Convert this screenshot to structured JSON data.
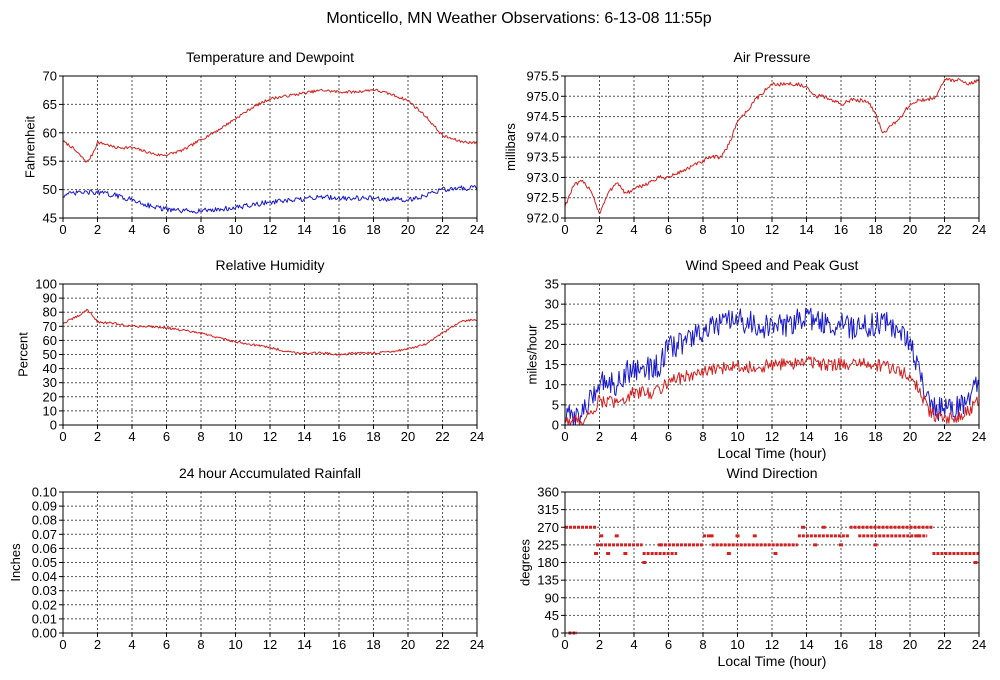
{
  "page": {
    "title": "Monticello, MN Weather Observations: 6-13-08 11:55p"
  },
  "colors": {
    "series_red": "#d42020",
    "series_blue": "#1a1acc",
    "grid": "#555555",
    "axis": "#000000",
    "background": "#ffffff"
  },
  "chart_data": [
    {
      "id": "temperature",
      "type": "line",
      "title": "Temperature and Dewpoint",
      "xlabel": "",
      "ylabel": "Fahrenheit",
      "xlim": [
        0,
        24
      ],
      "ylim": [
        45,
        70
      ],
      "xticks": [
        0,
        2,
        4,
        6,
        8,
        10,
        12,
        14,
        16,
        18,
        20,
        22,
        24
      ],
      "yticks": [
        45,
        50,
        55,
        60,
        65,
        70
      ],
      "ytick_labels": [
        "45",
        "50",
        "55",
        "60",
        "65",
        "70"
      ],
      "grid": true,
      "series": [
        {
          "color": "#d42020",
          "noise": 0.25,
          "x": [
            0,
            0.5,
            1.0,
            1.4,
            1.7,
            2.0,
            2.5,
            3.0,
            4.0,
            5.0,
            5.5,
            6.0,
            7.0,
            8.0,
            9.0,
            10.0,
            11.0,
            12.0,
            13.0,
            14.0,
            15.0,
            16.0,
            17.0,
            18.0,
            19.0,
            20.0,
            21.0,
            22.0,
            23.0,
            24.0
          ],
          "y": [
            58.5,
            57.5,
            56.0,
            54.8,
            56.2,
            58.3,
            58.0,
            57.4,
            57.4,
            56.5,
            56.1,
            56.1,
            57.0,
            58.8,
            60.5,
            62.5,
            64.5,
            66.0,
            66.5,
            67.0,
            67.5,
            67.2,
            67.2,
            67.6,
            66.8,
            65.7,
            63.0,
            59.5,
            58.5,
            58.2
          ]
        },
        {
          "color": "#1a1acc",
          "noise": 0.45,
          "x": [
            0,
            1.0,
            2.0,
            3.0,
            4.0,
            5.0,
            6.0,
            7.0,
            8.0,
            9.0,
            10.0,
            11.0,
            12.0,
            13.0,
            14.0,
            15.0,
            16.0,
            17.0,
            18.0,
            19.0,
            20.0,
            21.0,
            22.0,
            23.0,
            24.0
          ],
          "y": [
            49.0,
            49.5,
            49.5,
            49.0,
            48.2,
            47.2,
            46.5,
            46.2,
            46.3,
            46.5,
            46.8,
            47.3,
            47.8,
            48.0,
            48.3,
            48.8,
            48.5,
            48.5,
            48.5,
            48.3,
            48.2,
            49.0,
            50.0,
            50.2,
            50.3
          ]
        }
      ]
    },
    {
      "id": "pressure",
      "type": "line",
      "title": "Air Pressure",
      "xlabel": "",
      "ylabel": "millibars",
      "xlim": [
        0,
        24
      ],
      "ylim": [
        972.0,
        975.5
      ],
      "xticks": [
        0,
        2,
        4,
        6,
        8,
        10,
        12,
        14,
        16,
        18,
        20,
        22,
        24
      ],
      "yticks": [
        972.0,
        972.5,
        973.0,
        973.5,
        974.0,
        974.5,
        975.0,
        975.5
      ],
      "ytick_labels": [
        "972.0",
        "972.5",
        "973.0",
        "973.5",
        "974.0",
        "974.5",
        "975.0",
        "975.5"
      ],
      "grid": true,
      "series": [
        {
          "color": "#d42020",
          "noise": 0.05,
          "x": [
            0,
            0.5,
            1.0,
            1.5,
            2.0,
            2.5,
            3.0,
            3.5,
            4.0,
            4.5,
            5.0,
            5.5,
            6.0,
            6.5,
            7.0,
            7.5,
            8.0,
            8.5,
            9.0,
            9.5,
            10.0,
            10.5,
            11.0,
            11.5,
            12.0,
            12.5,
            13.0,
            13.5,
            14.0,
            14.5,
            15.0,
            15.5,
            16.0,
            16.5,
            17.0,
            17.5,
            18.0,
            18.3,
            18.5,
            19.0,
            19.5,
            20.0,
            20.5,
            21.0,
            21.5,
            22.0,
            22.5,
            23.0,
            23.5,
            24.0
          ],
          "y": [
            972.3,
            972.8,
            972.9,
            972.7,
            972.1,
            972.6,
            972.9,
            972.6,
            972.7,
            972.8,
            972.9,
            973.0,
            973.0,
            973.1,
            973.2,
            973.3,
            973.4,
            973.5,
            973.5,
            973.8,
            974.4,
            974.6,
            974.9,
            975.1,
            975.3,
            975.3,
            975.3,
            975.3,
            975.2,
            975.0,
            975.0,
            974.9,
            974.8,
            974.9,
            974.9,
            974.9,
            974.6,
            974.2,
            974.1,
            974.3,
            974.5,
            974.8,
            974.9,
            974.9,
            975.0,
            975.4,
            975.4,
            975.4,
            975.3,
            975.4
          ]
        }
      ]
    },
    {
      "id": "humidity",
      "type": "line",
      "title": "Relative Humidity",
      "xlabel": "",
      "ylabel": "Percent",
      "xlim": [
        0,
        24
      ],
      "ylim": [
        0,
        100
      ],
      "xticks": [
        0,
        2,
        4,
        6,
        8,
        10,
        12,
        14,
        16,
        18,
        20,
        22,
        24
      ],
      "yticks": [
        0,
        10,
        20,
        30,
        40,
        50,
        60,
        70,
        80,
        90,
        100
      ],
      "ytick_labels": [
        "0",
        "10",
        "20",
        "30",
        "40",
        "50",
        "60",
        "70",
        "80",
        "90",
        "100"
      ],
      "grid": true,
      "series": [
        {
          "color": "#d42020",
          "noise": 0.8,
          "x": [
            0,
            0.5,
            1.0,
            1.4,
            1.7,
            2.0,
            3.0,
            4.0,
            5.0,
            6.0,
            7.0,
            8.0,
            9.0,
            10.0,
            11.0,
            12.0,
            13.0,
            14.0,
            15.0,
            16.0,
            17.0,
            18.0,
            19.0,
            20.0,
            21.0,
            22.0,
            23.0,
            24.0
          ],
          "y": [
            72,
            75,
            78,
            82,
            78,
            73,
            72,
            70,
            70,
            69,
            67,
            65,
            62,
            59,
            57,
            55,
            52,
            51,
            51,
            50,
            51,
            51,
            52,
            54,
            57,
            65,
            73,
            75
          ]
        }
      ]
    },
    {
      "id": "wind-speed",
      "type": "line",
      "title": "Wind Speed and Peak Gust",
      "xlabel": "Local Time (hour)",
      "ylabel": "miles/hour",
      "xlim": [
        0,
        24
      ],
      "ylim": [
        0,
        35
      ],
      "xticks": [
        0,
        2,
        4,
        6,
        8,
        10,
        12,
        14,
        16,
        18,
        20,
        22,
        24
      ],
      "yticks": [
        0,
        5,
        10,
        15,
        20,
        25,
        30,
        35
      ],
      "ytick_labels": [
        "0",
        "5",
        "10",
        "15",
        "20",
        "25",
        "30",
        "35"
      ],
      "grid": true,
      "series": [
        {
          "color": "#1a1acc",
          "noise": 3.0,
          "x": [
            0,
            0.5,
            1.0,
            1.5,
            2.0,
            2.5,
            3.0,
            3.5,
            4.0,
            4.5,
            5.0,
            5.5,
            6.0,
            7.0,
            8.0,
            9.0,
            10.0,
            11.0,
            12.0,
            13.0,
            14.0,
            15.0,
            16.0,
            17.0,
            18.0,
            19.0,
            20.0,
            20.5,
            21.0,
            21.5,
            22.0,
            22.5,
            23.0,
            23.5,
            24.0
          ],
          "y": [
            2,
            2,
            3,
            6,
            11,
            11,
            10,
            13,
            14,
            14,
            14,
            15,
            19,
            21,
            23,
            25,
            26,
            25,
            24,
            25,
            27,
            25,
            25,
            24,
            25,
            25,
            20,
            15,
            6,
            4,
            4,
            4,
            5,
            8,
            11
          ]
        },
        {
          "color": "#d42020",
          "noise": 1.6,
          "x": [
            0,
            0.5,
            1.0,
            1.5,
            2.0,
            2.5,
            3.0,
            3.5,
            4.0,
            4.5,
            5.0,
            5.5,
            6.0,
            7.0,
            8.0,
            9.0,
            10.0,
            11.0,
            12.0,
            13.0,
            14.0,
            15.0,
            16.0,
            17.0,
            18.0,
            19.0,
            20.0,
            20.5,
            21.0,
            21.5,
            22.0,
            22.5,
            23.0,
            23.5,
            24.0
          ],
          "y": [
            1,
            1,
            1,
            3,
            6,
            6,
            5,
            7,
            8,
            8,
            8,
            9,
            11,
            12,
            13,
            14,
            15,
            14,
            15,
            15,
            16,
            15,
            15,
            15,
            15,
            14,
            12,
            9,
            4,
            2,
            2,
            1,
            2,
            4,
            6
          ]
        }
      ]
    },
    {
      "id": "rainfall",
      "type": "line",
      "title": "24 hour Accumulated Rainfall",
      "xlabel": "",
      "ylabel": "Inches",
      "xlim": [
        0,
        24
      ],
      "ylim": [
        0,
        0.1
      ],
      "xticks": [
        0,
        2,
        4,
        6,
        8,
        10,
        12,
        14,
        16,
        18,
        20,
        22,
        24
      ],
      "yticks": [
        0,
        0.01,
        0.02,
        0.03,
        0.04,
        0.05,
        0.06,
        0.07,
        0.08,
        0.09,
        0.1
      ],
      "ytick_labels": [
        "0.00",
        "0.01",
        "0.02",
        "0.03",
        "0.04",
        "0.05",
        "0.06",
        "0.07",
        "0.08",
        "0.09",
        "0.10"
      ],
      "grid": true,
      "series": [
        {
          "color": "#d42020",
          "noise": 0,
          "x": [
            0,
            24
          ],
          "y": [
            0,
            0
          ]
        }
      ]
    },
    {
      "id": "wind-direction",
      "type": "scatter",
      "title": "Wind Direction",
      "xlabel": "Local Time (hour)",
      "ylabel": "degrees",
      "xlim": [
        0,
        24
      ],
      "ylim": [
        0,
        360
      ],
      "xticks": [
        0,
        2,
        4,
        6,
        8,
        10,
        12,
        14,
        16,
        18,
        20,
        22,
        24
      ],
      "yticks": [
        0,
        45,
        90,
        135,
        180,
        225,
        270,
        315,
        360
      ],
      "ytick_labels": [
        "0",
        "45",
        "90",
        "135",
        "180",
        "225",
        "270",
        "315",
        "360"
      ],
      "grid": true,
      "series": [
        {
          "color": "#d42020",
          "segments": [
            {
              "x0": 0.2,
              "x1": 0.7,
              "y": 0
            },
            {
              "x0": 0.0,
              "x1": 1.8,
              "y": 270
            },
            {
              "x0": 1.8,
              "x1": 4.5,
              "y": 225
            },
            {
              "x0": 4.5,
              "x1": 6.5,
              "y": 203
            },
            {
              "x0": 5.5,
              "x1": 8.0,
              "y": 225
            },
            {
              "x0": 8.0,
              "x1": 8.5,
              "y": 248
            },
            {
              "x0": 8.5,
              "x1": 13.5,
              "y": 225
            },
            {
              "x0": 13.5,
              "x1": 16.5,
              "y": 248
            },
            {
              "x0": 16.5,
              "x1": 21.3,
              "y": 270
            },
            {
              "x0": 17.0,
              "x1": 21.0,
              "y": 248
            },
            {
              "x0": 21.3,
              "x1": 24.0,
              "y": 203
            }
          ],
          "scattered": {
            "x": [
              1.8,
              2.1,
              2.5,
              3.0,
              3.5,
              4.6,
              5.5,
              8.5,
              9.5,
              10.0,
              11.0,
              12.2,
              13.8,
              14.5,
              15.0,
              16.0,
              18.0,
              20.5,
              23.8
            ],
            "y": [
              203,
              248,
              203,
              248,
              203,
              180,
              225,
              248,
              203,
              248,
              248,
              203,
              270,
              225,
              270,
              225,
              225,
              248,
              180
            ]
          }
        }
      ]
    }
  ]
}
